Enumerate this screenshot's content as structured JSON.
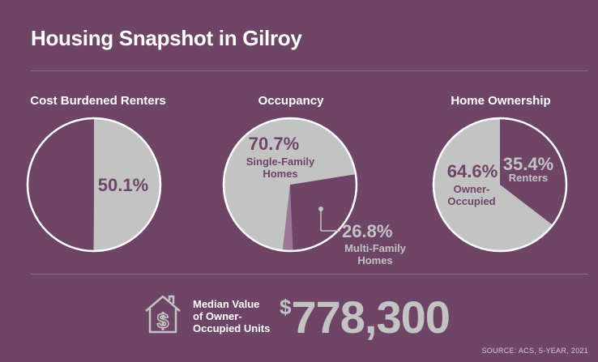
{
  "title": "Housing Snapshot in Gilroy",
  "colors": {
    "background": "#6e4566",
    "slice_gray": "#c4c3c4",
    "slice_purple": "#6e4566",
    "slice_light_purple": "#9c7597",
    "white": "#ffffff"
  },
  "chart_data": [
    {
      "type": "pie",
      "title": "Cost Burdened Renters",
      "slices": [
        {
          "label": "",
          "value": 50.1,
          "value_text": "50.1%",
          "color": "#c4c3c4"
        },
        {
          "label": "",
          "value": 49.9,
          "color": "#6e4566"
        }
      ]
    },
    {
      "type": "pie",
      "title": "Occupancy",
      "slices": [
        {
          "label": "Single-Family Homes",
          "value": 70.7,
          "value_text": "70.7%",
          "color": "#c4c3c4"
        },
        {
          "label": "Multi-Family Homes",
          "value": 26.8,
          "value_text": "26.8%",
          "color": "#6e4566"
        },
        {
          "label": "",
          "value": 2.5,
          "color": "#9c7597"
        }
      ]
    },
    {
      "type": "pie",
      "title": "Home Ownership",
      "slices": [
        {
          "label": "Renters",
          "value": 35.4,
          "value_text": "35.4%",
          "color": "#6e4566"
        },
        {
          "label": "Owner-Occupied",
          "value": 64.6,
          "value_text": "64.6%",
          "color": "#c4c3c4"
        }
      ]
    }
  ],
  "median": {
    "label_lines": [
      "Median Value",
      "of Owner-",
      "Occupied Units"
    ],
    "currency": "$",
    "amount": "778,300",
    "icon": "house-dollar-icon"
  },
  "source": "SOURCE: ACS, 5-YEAR, 2021"
}
